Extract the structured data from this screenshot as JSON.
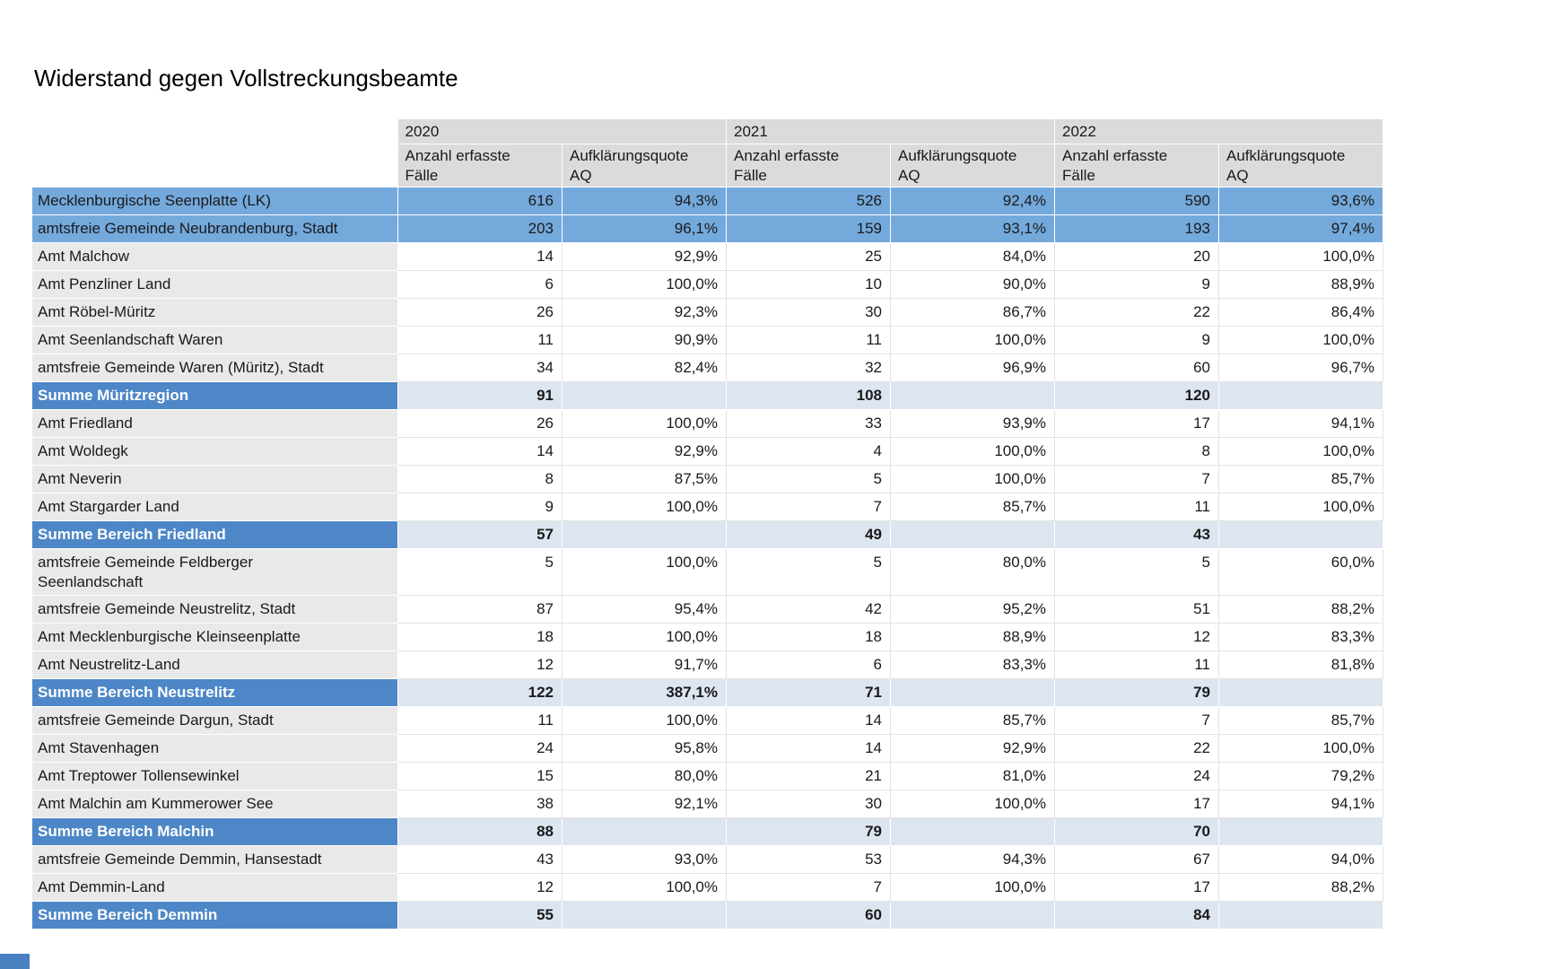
{
  "title": "Widerstand gegen Vollstreckungsbeamte",
  "chart_data": {
    "type": "table",
    "title": "Widerstand gegen Vollstreckungsbeamte",
    "year_groups": [
      "2020",
      "2021",
      "2022"
    ],
    "sub_columns": [
      "Anzahl erfasste Fälle",
      "Aufklärungsquote AQ"
    ],
    "rows": [
      {
        "label": "Mecklenburgische Seenplatte (LK)",
        "type": "highlight",
        "values": [
          "616",
          "94,3%",
          "526",
          "92,4%",
          "590",
          "93,6%"
        ]
      },
      {
        "label": "amtsfreie Gemeinde Neubrandenburg, Stadt",
        "type": "highlight",
        "values": [
          "203",
          "96,1%",
          "159",
          "93,1%",
          "193",
          "97,4%"
        ]
      },
      {
        "label": "Amt Malchow",
        "type": "normal",
        "values": [
          "14",
          "92,9%",
          "25",
          "84,0%",
          "20",
          "100,0%"
        ]
      },
      {
        "label": "Amt Penzliner Land",
        "type": "normal",
        "values": [
          "6",
          "100,0%",
          "10",
          "90,0%",
          "9",
          "88,9%"
        ]
      },
      {
        "label": "Amt Röbel-Müritz",
        "type": "normal",
        "values": [
          "26",
          "92,3%",
          "30",
          "86,7%",
          "22",
          "86,4%"
        ]
      },
      {
        "label": "Amt Seenlandschaft Waren",
        "type": "normal",
        "values": [
          "11",
          "90,9%",
          "11",
          "100,0%",
          "9",
          "100,0%"
        ]
      },
      {
        "label": "amtsfreie Gemeinde Waren (Müritz), Stadt",
        "type": "normal",
        "values": [
          "34",
          "82,4%",
          "32",
          "96,9%",
          "60",
          "96,7%"
        ]
      },
      {
        "label": "Summe Müritzregion",
        "type": "summe",
        "values": [
          "91",
          "",
          "108",
          "",
          "120",
          ""
        ]
      },
      {
        "label": "Amt Friedland",
        "type": "normal",
        "values": [
          "26",
          "100,0%",
          "33",
          "93,9%",
          "17",
          "94,1%"
        ]
      },
      {
        "label": "Amt Woldegk",
        "type": "normal",
        "values": [
          "14",
          "92,9%",
          "4",
          "100,0%",
          "8",
          "100,0%"
        ]
      },
      {
        "label": "Amt Neverin",
        "type": "normal",
        "values": [
          "8",
          "87,5%",
          "5",
          "100,0%",
          "7",
          "85,7%"
        ]
      },
      {
        "label": "Amt Stargarder Land",
        "type": "normal",
        "values": [
          "9",
          "100,0%",
          "7",
          "85,7%",
          "11",
          "100,0%"
        ]
      },
      {
        "label": "Summe Bereich Friedland",
        "type": "summe",
        "values": [
          "57",
          "",
          "49",
          "",
          "43",
          ""
        ]
      },
      {
        "label": "amtsfreie Gemeinde Feldberger Seenlandschaft",
        "type": "normal",
        "values": [
          "5",
          "100,0%",
          "5",
          "80,0%",
          "5",
          "60,0%"
        ]
      },
      {
        "label": "amtsfreie Gemeinde Neustrelitz, Stadt",
        "type": "normal",
        "values": [
          "87",
          "95,4%",
          "42",
          "95,2%",
          "51",
          "88,2%"
        ]
      },
      {
        "label": "Amt Mecklenburgische Kleinseenplatte",
        "type": "normal",
        "values": [
          "18",
          "100,0%",
          "18",
          "88,9%",
          "12",
          "83,3%"
        ]
      },
      {
        "label": "Amt Neustrelitz-Land",
        "type": "normal",
        "values": [
          "12",
          "91,7%",
          "6",
          "83,3%",
          "11",
          "81,8%"
        ]
      },
      {
        "label": "Summe Bereich Neustrelitz",
        "type": "summe",
        "values": [
          "122",
          "387,1%",
          "71",
          "",
          "79",
          ""
        ]
      },
      {
        "label": "amtsfreie Gemeinde Dargun, Stadt",
        "type": "normal",
        "values": [
          "11",
          "100,0%",
          "14",
          "85,7%",
          "7",
          "85,7%"
        ]
      },
      {
        "label": "Amt Stavenhagen",
        "type": "normal",
        "values": [
          "24",
          "95,8%",
          "14",
          "92,9%",
          "22",
          "100,0%"
        ]
      },
      {
        "label": "Amt Treptower Tollensewinkel",
        "type": "normal",
        "values": [
          "15",
          "80,0%",
          "21",
          "81,0%",
          "24",
          "79,2%"
        ]
      },
      {
        "label": "Amt Malchin am Kummerower See",
        "type": "normal",
        "values": [
          "38",
          "92,1%",
          "30",
          "100,0%",
          "17",
          "94,1%"
        ]
      },
      {
        "label": "Summe Bereich Malchin",
        "type": "summe",
        "values": [
          "88",
          "",
          "79",
          "",
          "70",
          ""
        ]
      },
      {
        "label": "amtsfreie Gemeinde Demmin, Hansestadt",
        "type": "normal",
        "values": [
          "43",
          "93,0%",
          "53",
          "94,3%",
          "67",
          "94,0%"
        ]
      },
      {
        "label": "Amt Demmin-Land",
        "type": "normal",
        "values": [
          "12",
          "100,0%",
          "7",
          "100,0%",
          "17",
          "88,2%"
        ]
      },
      {
        "label": "Summe Bereich Demmin",
        "type": "summe",
        "values": [
          "55",
          "",
          "60",
          "",
          "84",
          ""
        ]
      }
    ]
  },
  "colors": {
    "header_bg": "#dbdbdb",
    "label_bg": "#e9e9e9",
    "highlight_row_bg": "#74a9dc",
    "summe_label_bg": "#4d87c7",
    "summe_cell_bg": "#dde5f1",
    "accent_bar": "#4a80c0"
  }
}
